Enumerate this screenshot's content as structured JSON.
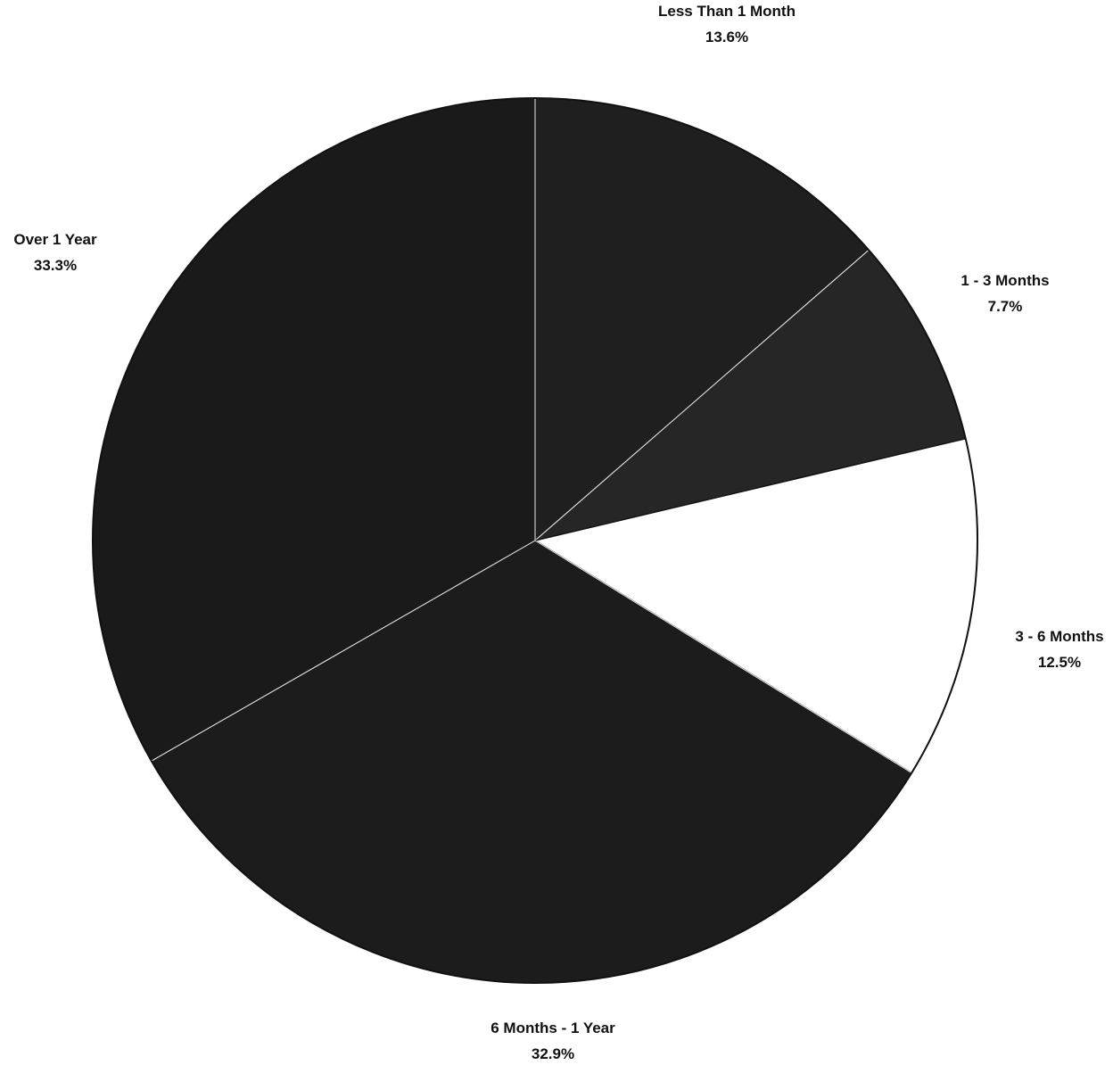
{
  "chart_data": {
    "type": "pie",
    "title": "",
    "start_angle_deg": -90,
    "direction": "clockwise",
    "slices": [
      {
        "label": "Less Than 1 Month",
        "value_label": "13.6%",
        "value": 13.6,
        "color": "#1f1f1f"
      },
      {
        "label": "1 - 3 Months",
        "value_label": "7.7%",
        "value": 7.7,
        "color": "#262626"
      },
      {
        "label": "3 - 6 Months",
        "value_label": "12.5%",
        "value": 12.5,
        "color": "#ffffff"
      },
      {
        "label": "6 Months - 1 Year",
        "value_label": "32.9%",
        "value": 32.9,
        "color": "#1c1c1c"
      },
      {
        "label": "Over 1 Year",
        "value_label": "33.3%",
        "value": 33.3,
        "color": "#1a1a1a"
      }
    ],
    "legend": "none",
    "data_labels": "outside"
  }
}
